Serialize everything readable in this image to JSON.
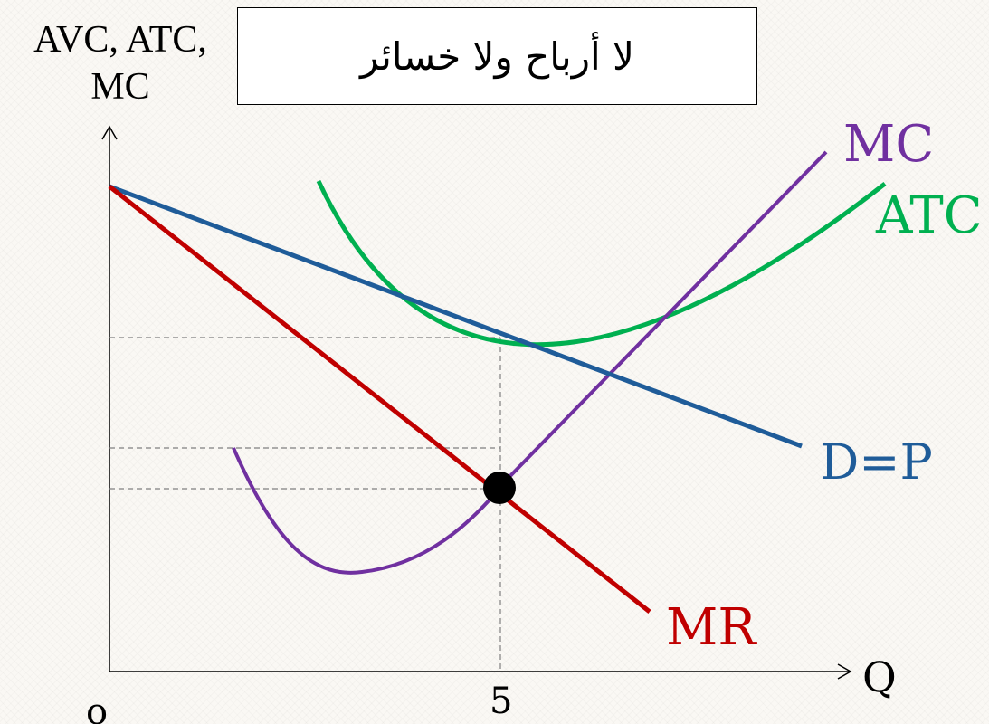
{
  "title": "لا أرباح ولا خسائر",
  "y_axis_label_line1": "AVC, ATC,",
  "y_axis_label_line2": "MC",
  "x_axis_label": "Q",
  "origin_label": "o",
  "x_tick_label": "5",
  "curves": {
    "mc": {
      "label": "MC",
      "color": "#7030a0"
    },
    "atc": {
      "label": "ATC",
      "color": "#00b050"
    },
    "demand": {
      "label": "D=P",
      "color": "#1f5c99"
    },
    "mr": {
      "label": "MR",
      "color": "#c00000"
    }
  },
  "guide_color": "#7f7f7f",
  "point_color": "#000000"
}
